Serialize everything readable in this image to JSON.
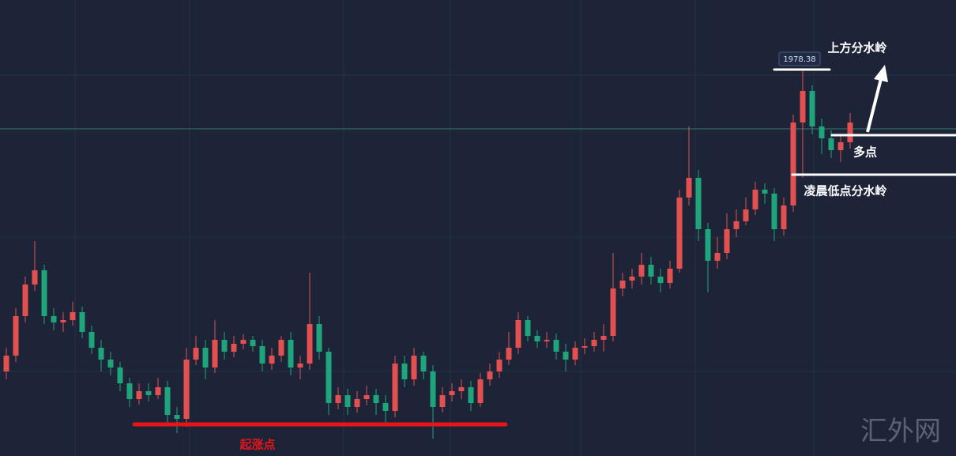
{
  "chart_data": {
    "type": "candlestick",
    "up_color": "#e2514f",
    "down_color": "#1fa57b",
    "ylim": [
      1929.5,
      1987.2
    ],
    "candles": [
      [
        1940.2,
        1943.2,
        1939.2,
        1942.2
      ],
      [
        1942.2,
        1948.2,
        1941.4,
        1947.2
      ],
      [
        1947.2,
        1952.2,
        1946.4,
        1951.2
      ],
      [
        1951.2,
        1956.7,
        1950.4,
        1953.0
      ],
      [
        1953.0,
        1953.7,
        1946.2,
        1947.2
      ],
      [
        1947.2,
        1948.2,
        1945.4,
        1946.4
      ],
      [
        1946.4,
        1947.7,
        1945.2,
        1946.7
      ],
      [
        1946.7,
        1949.0,
        1946.0,
        1947.7
      ],
      [
        1947.7,
        1948.4,
        1944.4,
        1945.2
      ],
      [
        1945.2,
        1946.0,
        1942.4,
        1943.2
      ],
      [
        1943.2,
        1944.2,
        1940.2,
        1941.7
      ],
      [
        1941.7,
        1942.7,
        1939.7,
        1940.7
      ],
      [
        1940.7,
        1941.4,
        1937.7,
        1938.7
      ],
      [
        1938.7,
        1939.4,
        1935.7,
        1936.7
      ],
      [
        1936.7,
        1938.7,
        1936.0,
        1937.7
      ],
      [
        1937.7,
        1938.7,
        1936.4,
        1937.2
      ],
      [
        1937.2,
        1939.4,
        1936.7,
        1938.2
      ],
      [
        1938.2,
        1939.0,
        1933.7,
        1934.7
      ],
      [
        1934.7,
        1935.7,
        1932.4,
        1934.2
      ],
      [
        1934.2,
        1943.2,
        1933.2,
        1941.7
      ],
      [
        1941.7,
        1944.7,
        1941.0,
        1943.2
      ],
      [
        1943.2,
        1944.2,
        1939.2,
        1940.7
      ],
      [
        1940.7,
        1946.7,
        1940.0,
        1944.2
      ],
      [
        1944.2,
        1945.2,
        1941.7,
        1942.7
      ],
      [
        1942.7,
        1944.7,
        1942.0,
        1943.7
      ],
      [
        1943.7,
        1944.9,
        1943.0,
        1944.2
      ],
      [
        1944.2,
        1944.7,
        1942.7,
        1943.4
      ],
      [
        1943.4,
        1944.2,
        1940.2,
        1941.2
      ],
      [
        1941.2,
        1943.2,
        1940.4,
        1942.2
      ],
      [
        1942.2,
        1944.7,
        1941.4,
        1944.2
      ],
      [
        1944.2,
        1945.2,
        1939.7,
        1940.7
      ],
      [
        1940.7,
        1942.2,
        1939.2,
        1941.2
      ],
      [
        1941.2,
        1952.7,
        1940.4,
        1946.2
      ],
      [
        1946.2,
        1947.2,
        1941.7,
        1942.7
      ],
      [
        1942.7,
        1943.2,
        1934.7,
        1936.2
      ],
      [
        1936.2,
        1938.2,
        1935.4,
        1937.2
      ],
      [
        1937.2,
        1938.0,
        1934.7,
        1935.7
      ],
      [
        1935.7,
        1937.7,
        1935.0,
        1936.7
      ],
      [
        1936.7,
        1938.4,
        1935.9,
        1937.2
      ],
      [
        1937.2,
        1938.0,
        1934.7,
        1936.2
      ],
      [
        1936.2,
        1937.2,
        1933.7,
        1935.2
      ],
      [
        1935.2,
        1942.2,
        1934.4,
        1941.2
      ],
      [
        1941.2,
        1942.2,
        1938.2,
        1939.2
      ],
      [
        1939.2,
        1943.2,
        1938.4,
        1942.2
      ],
      [
        1942.2,
        1942.7,
        1939.2,
        1940.2
      ],
      [
        1940.2,
        1941.0,
        1931.7,
        1935.7
      ],
      [
        1935.7,
        1938.2,
        1935.0,
        1937.2
      ],
      [
        1937.2,
        1938.7,
        1936.4,
        1937.7
      ],
      [
        1937.7,
        1939.2,
        1936.7,
        1938.2
      ],
      [
        1938.2,
        1939.0,
        1935.2,
        1936.2
      ],
      [
        1936.2,
        1940.0,
        1935.7,
        1939.2
      ],
      [
        1939.2,
        1941.2,
        1938.4,
        1940.2
      ],
      [
        1940.2,
        1942.7,
        1939.4,
        1941.7
      ],
      [
        1941.7,
        1945.2,
        1941.0,
        1943.2
      ],
      [
        1943.2,
        1947.7,
        1942.4,
        1946.7
      ],
      [
        1946.7,
        1947.2,
        1944.0,
        1944.7
      ],
      [
        1944.7,
        1945.4,
        1943.2,
        1944.0
      ],
      [
        1944.0,
        1945.2,
        1943.2,
        1944.2
      ],
      [
        1944.2,
        1945.0,
        1941.7,
        1942.7
      ],
      [
        1942.7,
        1943.7,
        1940.2,
        1941.7
      ],
      [
        1941.7,
        1944.0,
        1941.0,
        1943.2
      ],
      [
        1943.2,
        1944.4,
        1942.4,
        1943.4
      ],
      [
        1943.4,
        1945.2,
        1942.7,
        1944.2
      ],
      [
        1944.2,
        1946.2,
        1942.7,
        1944.7
      ],
      [
        1944.7,
        1955.2,
        1944.0,
        1950.7
      ],
      [
        1950.7,
        1952.7,
        1949.7,
        1951.7
      ],
      [
        1951.7,
        1953.2,
        1950.7,
        1952.2
      ],
      [
        1952.2,
        1955.2,
        1951.2,
        1953.7
      ],
      [
        1953.7,
        1954.7,
        1951.2,
        1952.2
      ],
      [
        1952.2,
        1953.2,
        1950.2,
        1951.4
      ],
      [
        1951.4,
        1954.2,
        1950.7,
        1953.2
      ],
      [
        1953.2,
        1963.2,
        1952.7,
        1962.2
      ],
      [
        1962.2,
        1971.2,
        1961.2,
        1964.7
      ],
      [
        1964.7,
        1965.7,
        1956.7,
        1958.2
      ],
      [
        1958.2,
        1959.0,
        1950.2,
        1954.2
      ],
      [
        1954.2,
        1957.2,
        1953.2,
        1955.2
      ],
      [
        1955.2,
        1960.2,
        1954.4,
        1958.2
      ],
      [
        1958.2,
        1960.7,
        1957.2,
        1959.2
      ],
      [
        1959.2,
        1962.2,
        1958.7,
        1960.7
      ],
      [
        1960.7,
        1964.2,
        1960.0,
        1963.2
      ],
      [
        1963.2,
        1964.0,
        1961.4,
        1962.7
      ],
      [
        1962.7,
        1963.4,
        1956.7,
        1958.2
      ],
      [
        1958.2,
        1962.2,
        1957.4,
        1961.2
      ],
      [
        1961.2,
        1972.7,
        1960.4,
        1971.7
      ],
      [
        1971.7,
        1978.38,
        1964.7,
        1975.7
      ],
      [
        1975.7,
        1976.4,
        1970.2,
        1971.2
      ],
      [
        1971.2,
        1972.2,
        1967.7,
        1969.7
      ],
      [
        1969.7,
        1970.7,
        1967.2,
        1968.2
      ],
      [
        1968.2,
        1970.0,
        1966.7,
        1969.2
      ],
      [
        1969.2,
        1972.9,
        1968.4,
        1971.7
      ]
    ],
    "levels": [
      {
        "value": 1933.5,
        "color": "#e8141a",
        "label": "起涨点"
      },
      {
        "value": 1978.4,
        "color": "#ffffff",
        "label": "上方分水岭"
      },
      {
        "value": 1970.1,
        "color": "#ffffff",
        "label": "多点"
      },
      {
        "value": 1965.1,
        "color": "#ffffff",
        "label": "凌晨低点分水岭"
      },
      {
        "value": 1970.9,
        "color": "#2f7a6a"
      }
    ],
    "watermark": "汇外网"
  }
}
